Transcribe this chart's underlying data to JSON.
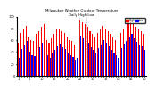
{
  "title": "Milwaukee Weather Outdoor Temperature",
  "subtitle": "Daily High/Low",
  "bar_width": 0.4,
  "high_color": "#ff0000",
  "low_color": "#0000ff",
  "legend_high": "High",
  "legend_low": "Low",
  "background_color": "#ffffff",
  "ylim": [
    0,
    100
  ],
  "highs": [
    55,
    72,
    80,
    85,
    65,
    60,
    58,
    70,
    75,
    82,
    88,
    60,
    55,
    63,
    70,
    78,
    80,
    75,
    72,
    65,
    60,
    58,
    52,
    55,
    95,
    90,
    88,
    82,
    75,
    70,
    65,
    72,
    78,
    85,
    80,
    75,
    70,
    65,
    60,
    55,
    72,
    80,
    85,
    90,
    95,
    88,
    82,
    78,
    75,
    70
  ],
  "lows": [
    30,
    45,
    52,
    58,
    40,
    35,
    33,
    42,
    48,
    55,
    62,
    35,
    30,
    38,
    44,
    50,
    54,
    48,
    45,
    39,
    35,
    32,
    27,
    30,
    68,
    63,
    61,
    55,
    48,
    43,
    39,
    46,
    52,
    60,
    55,
    49,
    44,
    39,
    35,
    30,
    46,
    54,
    59,
    65,
    70,
    63,
    57,
    52,
    49,
    44
  ],
  "tick_labels": [
    "1",
    "",
    "",
    "",
    "5",
    "",
    "",
    "",
    "",
    "10",
    "",
    "",
    "",
    "",
    "15",
    "",
    "",
    "",
    "",
    "20",
    "",
    "",
    "",
    "",
    "25",
    "",
    "",
    "",
    "",
    "30",
    "",
    "",
    "",
    "",
    "35",
    "",
    "",
    "",
    "",
    "40",
    "",
    "",
    "",
    "",
    "45",
    "",
    "",
    "",
    "",
    "50"
  ]
}
